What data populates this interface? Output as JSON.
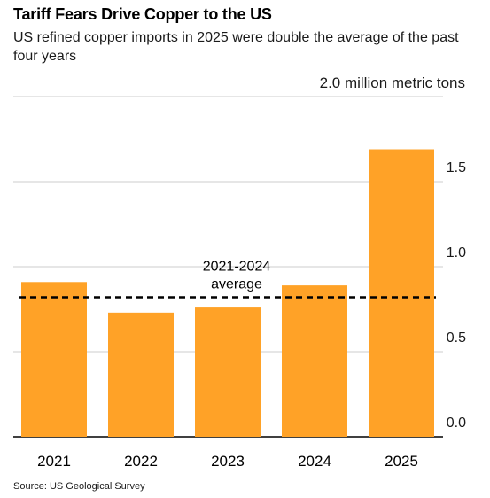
{
  "title": "Tariff Fears Drive Copper to the US",
  "subtitle": "US refined copper imports in 2025 were double the average of the past four years",
  "source": "Source: US Geological Survey",
  "colors": {
    "bar": "#ffa227",
    "grid": "#cccccc",
    "axis": "#000000",
    "average_line": "#000000"
  },
  "chart_data": {
    "type": "bar",
    "categories": [
      "2021",
      "2022",
      "2023",
      "2024",
      "2025"
    ],
    "values": [
      0.91,
      0.73,
      0.76,
      0.89,
      1.69
    ],
    "ylabel": "",
    "ylim": [
      0,
      2.0
    ],
    "y_ticks": [
      "0.0",
      "0.5",
      "1.0",
      "1.5",
      "2.0 million metric tons"
    ],
    "y_tick_values": [
      0,
      0.5,
      1.0,
      1.5,
      2.0
    ],
    "y_axis_side": "right",
    "grid": true,
    "reference_line": {
      "value": 0.82,
      "style": "dashed",
      "label_lines": [
        "2021-2024",
        "average"
      ]
    }
  }
}
